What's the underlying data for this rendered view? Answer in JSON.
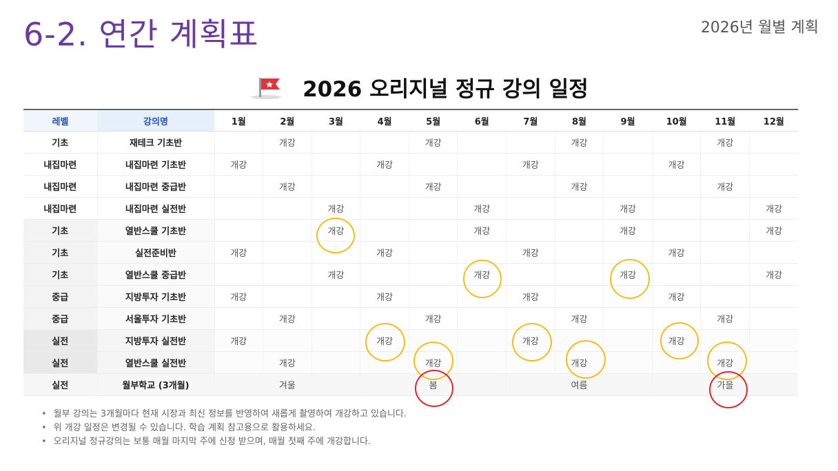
{
  "slide": {
    "title": "6-2. 연간 계획표",
    "corner_label": "2026년 월별 계획"
  },
  "table_title": "2026 오리지널 정규 강의 일정",
  "headers": [
    "레벨",
    "강의명",
    "1월",
    "2월",
    "3월",
    "4월",
    "5월",
    "6월",
    "7월",
    "8월",
    "9월",
    "10월",
    "11월",
    "12월"
  ],
  "rows": [
    {
      "level": "기초",
      "name": "재테크 기초반",
      "months": [
        "",
        "개강",
        "",
        "",
        "개강",
        "",
        "",
        "개강",
        "",
        "",
        "개강",
        ""
      ]
    },
    {
      "level": "내집마련",
      "name": "내집마련 기초반",
      "months": [
        "개강",
        "",
        "",
        "개강",
        "",
        "",
        "개강",
        "",
        "",
        "개강",
        "",
        ""
      ]
    },
    {
      "level": "내집마련",
      "name": "내집마련 중급반",
      "months": [
        "",
        "개강",
        "",
        "",
        "개강",
        "",
        "",
        "개강",
        "",
        "",
        "개강",
        ""
      ]
    },
    {
      "level": "내집마련",
      "name": "내집마련 실전반",
      "months": [
        "",
        "",
        "개강",
        "",
        "",
        "개강",
        "",
        "",
        "개강",
        "",
        "",
        "개강"
      ]
    },
    {
      "level": "기초",
      "name": "열반스쿨 기초반",
      "months": [
        "",
        "",
        "개강",
        "",
        "",
        "개강",
        "",
        "",
        "개강",
        "",
        "",
        "개강"
      ]
    },
    {
      "level": "기초",
      "name": "실전준비반",
      "months": [
        "개강",
        "",
        "",
        "개강",
        "",
        "",
        "개강",
        "",
        "",
        "개강",
        "",
        ""
      ]
    },
    {
      "level": "기초",
      "name": "열반스쿨 중급반",
      "months": [
        "",
        "",
        "개강",
        "",
        "",
        "개강",
        "",
        "",
        "개강",
        "",
        "",
        "개강"
      ]
    },
    {
      "level": "중급",
      "name": "지방투자 기초반",
      "months": [
        "개강",
        "",
        "",
        "개강",
        "",
        "",
        "개강",
        "",
        "",
        "개강",
        "",
        ""
      ]
    },
    {
      "level": "중급",
      "name": "서울투자 기초반",
      "months": [
        "",
        "개강",
        "",
        "",
        "개강",
        "",
        "",
        "개강",
        "",
        "",
        "개강",
        ""
      ]
    },
    {
      "level": "실전",
      "name": "지방투자 실전반",
      "months": [
        "개강",
        "",
        "",
        "개강",
        "",
        "",
        "개강",
        "",
        "",
        "개강",
        "",
        ""
      ]
    },
    {
      "level": "실전",
      "name": "열반스쿨 실전반",
      "months": [
        "",
        "개강",
        "",
        "",
        "개강",
        "",
        "",
        "개강",
        "",
        "",
        "개강",
        ""
      ]
    }
  ],
  "last_row": {
    "level": "실전",
    "name": "월부학교 (3개월)",
    "seasons": [
      "겨울",
      "봄",
      "여름",
      "가을"
    ]
  },
  "notes": [
    "월부 강의는 3개월마다 현재 시장과 최신 정보를 반영하여 새롭게 촬영하여 개강하고 있습니다.",
    "위 개강 일정은 변경될 수 있습니다. 학습 계획 참고용으로 활용하세요.",
    "오리지널 정규강의는 보통 매월 마지막 주에 신청 받으며, 매월 첫째 주에 개강합니다."
  ],
  "colors": {
    "title": "#6a3a9f",
    "header_accent": "#2453b5",
    "highlight_yellow": "#f2bd1c",
    "highlight_red": "#d9282f"
  },
  "icons": {
    "flag": "flag-icon"
  }
}
